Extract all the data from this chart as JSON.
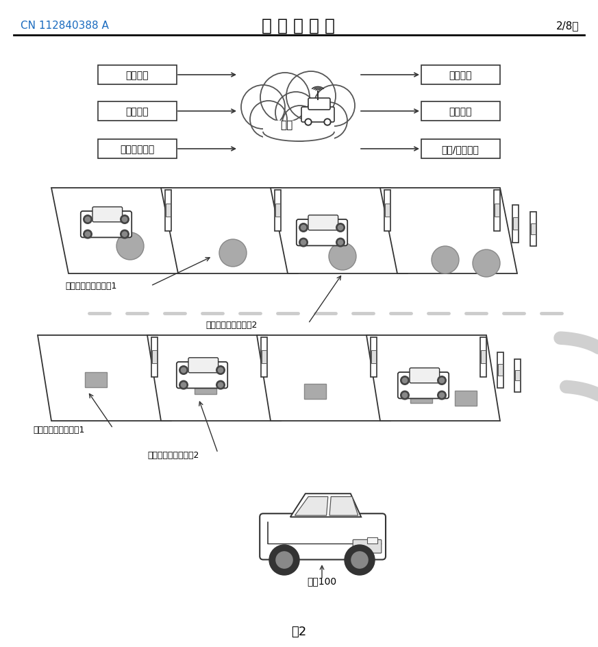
{
  "title": "说 明 书 附 图",
  "patent_number": "CN 112840388 A",
  "page": "2/8页",
  "figure_label": "图2",
  "cloud_label": "云端",
  "left_boxes": [
    "车位匹配",
    "路径引导",
    "泊车方式推荐"
  ],
  "right_boxes": [
    "空中升级",
    "地图服务",
    "软件/算法更新"
  ],
  "label_round1": "圆形无线充电发射端1",
  "label_round2": "圆形无线充电发射端2",
  "label_rect1": "矩形无线充电发射端1",
  "label_rect2": "矩形无线充电发射端2",
  "label_vehicle": "车车100",
  "bg_color": "#ffffff",
  "text_color": "#000000",
  "header_line_color": "#000000",
  "blue_color": "#1a6bbf",
  "gray_color": "#aaaaaa"
}
